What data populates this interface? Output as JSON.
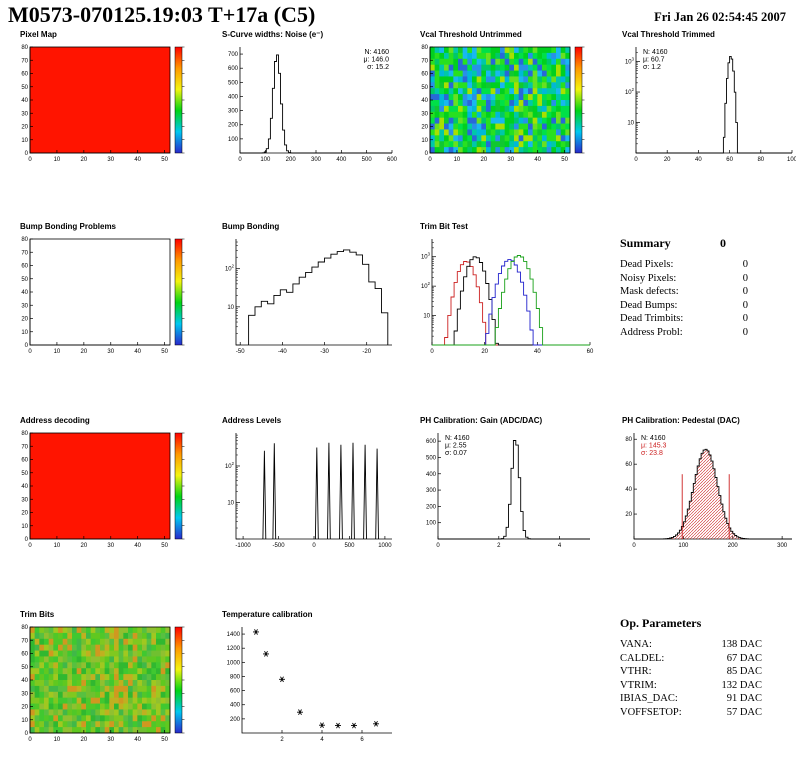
{
  "header": {
    "title": "M0573-070125.19:03 T+17a (C5)",
    "date": "Fri Jan 26 02:54:45 2007"
  },
  "summary": {
    "title": "Summary",
    "value": "0",
    "rows": [
      {
        "label": "Dead Pixels:",
        "value": "0"
      },
      {
        "label": "Noisy Pixels:",
        "value": "0"
      },
      {
        "label": "Mask defects:",
        "value": "0"
      },
      {
        "label": "Dead Bumps:",
        "value": "0"
      },
      {
        "label": "Dead Trimbits:",
        "value": "0"
      },
      {
        "label": "Address Probl:",
        "value": "0"
      }
    ]
  },
  "op_parameters": {
    "title": "Op. Parameters",
    "rows": [
      {
        "label": "VANA:",
        "value": "138 DAC"
      },
      {
        "label": "CALDEL:",
        "value": "67 DAC"
      },
      {
        "label": "VTHR:",
        "value": "85 DAC"
      },
      {
        "label": "VTRIM:",
        "value": "132 DAC"
      },
      {
        "label": "IBIAS_DAC:",
        "value": "91 DAC"
      },
      {
        "label": "VOFFSETOP:",
        "value": "57 DAC"
      }
    ]
  },
  "chart_data": [
    {
      "id": "pixel-map",
      "type": "heatmap",
      "title": "Pixel Map",
      "fill": "solid",
      "base_color": "#ff1400",
      "colorbar": true,
      "ml": 22,
      "xlim": [
        0,
        52
      ],
      "ylim": [
        0,
        80
      ],
      "xticks": [
        0,
        10,
        20,
        30,
        40,
        50
      ],
      "yticks": [
        0,
        10,
        20,
        30,
        40,
        50,
        60,
        70,
        80
      ]
    },
    {
      "id": "scurve-noise",
      "type": "histogram",
      "title": "S-Curve widths: Noise (e⁻)",
      "ml": 30,
      "xlim": [
        0,
        600
      ],
      "ylim": [
        0,
        750
      ],
      "xticks": [
        0,
        100,
        200,
        300,
        400,
        500,
        600
      ],
      "yticks": [
        100,
        200,
        300,
        400,
        500,
        600,
        700
      ],
      "series": [
        {
          "kind": "gauss",
          "mu": 146,
          "sigma": 15.2,
          "peak": 700,
          "binw": 8,
          "color": "#000000"
        }
      ],
      "stats": {
        "pos": "right",
        "lines": [
          {
            "text": "N: 4160"
          },
          {
            "text": "μ: 146.0"
          },
          {
            "text": "σ: 15.2"
          }
        ]
      }
    },
    {
      "id": "vcal-untrimmed",
      "type": "heatmap",
      "title": "Vcal Threshold Untrimmed",
      "fill": "noise",
      "seed": 7,
      "colorbar": true,
      "ml": 22,
      "palette": [
        "#00d020",
        "#10c830",
        "#28e020",
        "#00c868",
        "#00c8a8",
        "#00b8d8",
        "#2890e8",
        "#2868d8",
        "#68e020",
        "#a8e000",
        "#00e048",
        "#18b8f0",
        "#00d020",
        "#28e020"
      ],
      "xlim": [
        0,
        52
      ],
      "ylim": [
        0,
        80
      ],
      "xticks": [
        0,
        10,
        20,
        30,
        40,
        50
      ],
      "yticks": [
        0,
        10,
        20,
        30,
        40,
        50,
        60,
        70,
        80
      ]
    },
    {
      "id": "vcal-trimmed",
      "type": "histogram",
      "title": "Vcal Threshold Trimmed",
      "ml": 26,
      "ylog": true,
      "xlim": [
        0,
        100
      ],
      "ylim": [
        1,
        3000
      ],
      "xticks": [
        0,
        20,
        40,
        60,
        80,
        100
      ],
      "series": [
        {
          "kind": "gauss",
          "mu": 60.7,
          "sigma": 1.2,
          "peak": 1500,
          "binw": 1,
          "color": "#000000"
        }
      ],
      "stats": {
        "pos": "left",
        "lines": [
          {
            "text": "N: 4160"
          },
          {
            "text": "μ: 60.7"
          },
          {
            "text": "σ: 1.2"
          }
        ]
      }
    },
    {
      "id": "bump-problems",
      "type": "heatmap",
      "title": "Bump Bonding Problems",
      "fill": "solid",
      "base_color": "#ffffff",
      "colorbar": true,
      "ml": 22,
      "xlim": [
        0,
        52
      ],
      "ylim": [
        0,
        80
      ],
      "xticks": [
        0,
        10,
        20,
        30,
        40,
        50
      ],
      "yticks": [
        0,
        10,
        20,
        30,
        40,
        50,
        60,
        70,
        80
      ]
    },
    {
      "id": "bump-bonding",
      "type": "histogram",
      "title": "Bump Bonding",
      "ml": 26,
      "ylog": true,
      "xlim": [
        -51,
        -14
      ],
      "ylim": [
        1,
        600
      ],
      "xticks": [
        -50,
        -40,
        -30,
        -20
      ],
      "series": [
        {
          "kind": "steps",
          "binw": 1.5,
          "color": "#000000",
          "points": [
            [
              -48,
              6
            ],
            [
              -46.5,
              10
            ],
            [
              -45,
              14
            ],
            [
              -43.5,
              12
            ],
            [
              -42,
              20
            ],
            [
              -40.5,
              28
            ],
            [
              -39,
              24
            ],
            [
              -37.5,
              40
            ],
            [
              -36,
              60
            ],
            [
              -34.5,
              80
            ],
            [
              -33,
              110
            ],
            [
              -31.5,
              150
            ],
            [
              -30,
              190
            ],
            [
              -28.5,
              240
            ],
            [
              -27,
              280
            ],
            [
              -25.5,
              310
            ],
            [
              -24,
              270
            ],
            [
              -22.5,
              230
            ],
            [
              -21,
              130
            ],
            [
              -19.5,
              45
            ],
            [
              -18,
              30
            ],
            [
              -16.5,
              7
            ]
          ]
        }
      ]
    },
    {
      "id": "trim-bit-test",
      "type": "histogram",
      "title": "Trim Bit Test",
      "ml": 24,
      "ylog": true,
      "xlim": [
        0,
        60
      ],
      "ylim": [
        1,
        4000
      ],
      "xticks": [
        0,
        20,
        40,
        60
      ],
      "series": [
        {
          "kind": "gauss",
          "mu": 13,
          "sigma": 2.2,
          "peak": 700,
          "binw": 1.2,
          "color": "#cc2020"
        },
        {
          "kind": "gauss",
          "mu": 16.5,
          "sigma": 2.2,
          "peak": 1000,
          "binw": 1.2,
          "color": "#000000"
        },
        {
          "kind": "gauss",
          "mu": 29.5,
          "sigma": 2.5,
          "peak": 800,
          "binw": 1.2,
          "color": "#2020cc"
        },
        {
          "kind": "gauss",
          "mu": 33,
          "sigma": 2.5,
          "peak": 1100,
          "binw": 1.2,
          "color": "#18a018"
        }
      ]
    },
    {
      "id": "address-decoding",
      "type": "heatmap",
      "title": "Address decoding",
      "fill": "solid",
      "base_color": "#ff1400",
      "colorbar": true,
      "ml": 22,
      "xlim": [
        0,
        52
      ],
      "ylim": [
        0,
        80
      ],
      "xticks": [
        0,
        10,
        20,
        30,
        40,
        50
      ],
      "yticks": [
        0,
        10,
        20,
        30,
        40,
        50,
        60,
        70,
        80
      ]
    },
    {
      "id": "address-levels",
      "type": "histogram",
      "title": "Address Levels",
      "ml": 26,
      "ylog": true,
      "xlim": [
        -1100,
        1100
      ],
      "ylim": [
        1,
        800
      ],
      "xticks": [
        -1000,
        -500,
        0,
        500,
        1000
      ],
      "series": [
        {
          "kind": "spikes",
          "width": 40,
          "color": "#000000",
          "at": [
            [
              -700,
              260
            ],
            [
              -560,
              420
            ],
            [
              40,
              320
            ],
            [
              210,
              430
            ],
            [
              380,
              380
            ],
            [
              550,
              430
            ],
            [
              720,
              380
            ],
            [
              890,
              300
            ]
          ]
        }
      ]
    },
    {
      "id": "ph-gain",
      "type": "histogram",
      "title": "PH Calibration: Gain (ADC/DAC)",
      "ml": 30,
      "xlim": [
        0,
        5
      ],
      "ylim": [
        0,
        650
      ],
      "xticks": [
        0,
        2,
        4
      ],
      "yticks": [
        100,
        200,
        300,
        400,
        500,
        600
      ],
      "series": [
        {
          "kind": "gauss",
          "mu": 2.55,
          "sigma": 0.13,
          "peak": 620,
          "binw": 0.08,
          "color": "#000000"
        }
      ],
      "stats": {
        "pos": "left",
        "lines": [
          {
            "text": "N: 4160"
          },
          {
            "text": "μ: 2.55"
          },
          {
            "text": "σ: 0.07"
          }
        ]
      }
    },
    {
      "id": "ph-pedestal",
      "type": "histogram",
      "title": "PH Calibration: Pedestal (DAC)",
      "ml": 24,
      "xlim": [
        0,
        320
      ],
      "ylim": [
        0,
        85
      ],
      "xticks": [
        0,
        100,
        200,
        300
      ],
      "yticks": [
        20,
        40,
        60,
        80
      ],
      "series": [
        {
          "kind": "gauss",
          "mu": 145.3,
          "sigma": 23.8,
          "peak": 72,
          "binw": 4,
          "color": "#000000",
          "hatch": "#cc2020"
        }
      ],
      "vlines": [
        {
          "x": 97.7,
          "h": 52,
          "color": "#cc2020"
        },
        {
          "x": 192.9,
          "h": 52,
          "color": "#cc2020"
        }
      ],
      "stats": {
        "pos": "left",
        "lines": [
          {
            "text": "N: 4160"
          },
          {
            "text": "μ: 145.3",
            "color": "#cc2020"
          },
          {
            "text": "σ: 23.8",
            "color": "#cc2020"
          }
        ]
      }
    },
    {
      "id": "trim-bits",
      "type": "heatmap",
      "title": "Trim Bits",
      "fill": "noise",
      "seed": 13,
      "colorbar": true,
      "ml": 22,
      "palette": [
        "#30b830",
        "#40c830",
        "#60c820",
        "#80c820",
        "#a0c820",
        "#c0b020",
        "#d09820",
        "#40b848",
        "#58c040",
        "#90c030",
        "#50c828",
        "#70c030"
      ],
      "xlim": [
        0,
        52
      ],
      "ylim": [
        0,
        80
      ],
      "xticks": [
        0,
        10,
        20,
        30,
        40,
        50
      ],
      "yticks": [
        0,
        10,
        20,
        30,
        40,
        50,
        60,
        70,
        80
      ]
    },
    {
      "id": "temperature-calibration",
      "type": "scatter",
      "title": "Temperature calibration",
      "ml": 32,
      "xlim": [
        0,
        7.5
      ],
      "ylim": [
        0,
        1500
      ],
      "xticks": [
        2,
        4,
        6
      ],
      "yticks": [
        200,
        400,
        600,
        800,
        1000,
        1200,
        1400
      ],
      "series": [
        {
          "kind": "stars",
          "color": "#000000",
          "x": [
            0.7,
            1.2,
            2.0,
            2.9,
            4.0,
            4.8,
            5.6,
            6.7
          ],
          "y": [
            1430,
            1120,
            760,
            295,
            110,
            105,
            105,
            130
          ]
        }
      ]
    }
  ]
}
